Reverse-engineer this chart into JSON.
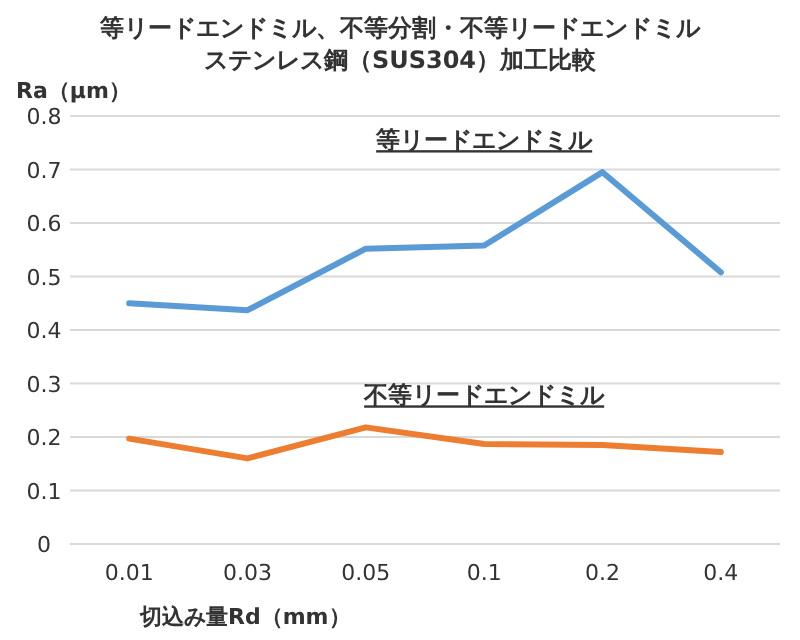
{
  "chart_data": {
    "type": "line",
    "title": "等リードエンドミル、不等分割・不等リードエンドミル",
    "subtitle": "ステンレス鋼（SUS304）加工比較",
    "ylabel": "Ra（μm）",
    "xlabel": "切込み量Rd（mm）",
    "categories": [
      "0.01",
      "0.03",
      "0.05",
      "0.1",
      "0.2",
      "0.4"
    ],
    "series": [
      {
        "name": "等リードエンドミル",
        "color": "#5b9bd5",
        "values": [
          0.45,
          0.437,
          0.552,
          0.558,
          0.695,
          0.508
        ]
      },
      {
        "name": "不等リードエンドミル",
        "color": "#ed7d31",
        "values": [
          0.197,
          0.16,
          0.218,
          0.187,
          0.185,
          0.172
        ]
      }
    ],
    "ylim": [
      0,
      0.8
    ],
    "yticks": [
      0,
      0.1,
      0.2,
      0.3,
      0.4,
      0.5,
      0.6,
      0.7,
      0.8
    ],
    "grid": "y",
    "legend": false,
    "marker": "none",
    "line_style": "solid"
  }
}
